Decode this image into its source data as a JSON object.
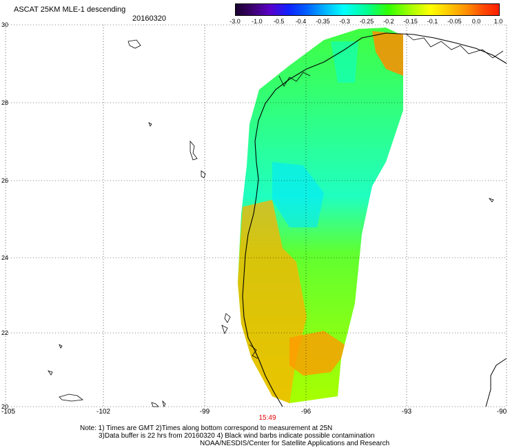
{
  "header": {
    "title": "ASCAT 25KM MLE-1 descending",
    "date": "20160320"
  },
  "colorbar": {
    "tick_labels": [
      "-3.0",
      "-1.0",
      "-0.5",
      "-0.4",
      "-0.35",
      "-0.3",
      "-0.25",
      "-0.2",
      "-0.15",
      "-0.1",
      "-0.05",
      "0.0",
      "1.0"
    ],
    "colors": [
      "#1a0030",
      "#5a00c8",
      "#1020ff",
      "#00b4ff",
      "#00ffff",
      "#30ff00",
      "#ffff00",
      "#ff8c00",
      "#ff1e00"
    ]
  },
  "map": {
    "y_labels": [
      "30",
      "28",
      "26",
      "24",
      "22",
      "20"
    ],
    "x_labels": [
      "-105",
      "-102",
      "-99",
      "-96",
      "-93",
      "-90"
    ],
    "grid": "dotted",
    "swath_time": "15:49",
    "coastline_color": "#000000"
  },
  "notes": {
    "line1": "Note: 1) Times are GMT 2)Times along bottom correspond to measurement at 25N",
    "line2": "3)Data buffer is 22 hrs from 20160320 4) Black wind barbs indicate possible contamination",
    "line3": "NOAA/NESDIS/Center for Satellite Applications and Research"
  }
}
